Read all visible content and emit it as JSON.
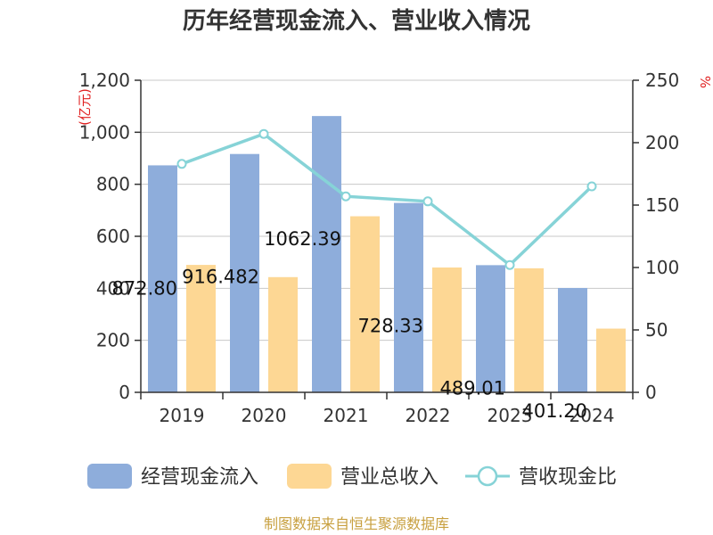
{
  "chart_data": {
    "type": "bar",
    "title": "历年经营现金流入、营业收入情况",
    "categories": [
      "2019",
      "2020",
      "2021",
      "2022",
      "2023",
      "2024"
    ],
    "series": [
      {
        "name": "经营现金流入",
        "type": "bar",
        "axis": "left",
        "color": "#8eaddb",
        "values": [
          872.8,
          916.48,
          1062.39,
          728.33,
          489.01,
          401.2
        ],
        "labels": [
          "872.80",
          "916.482",
          "1062.39",
          "728.33",
          "489.01",
          "401.20"
        ]
      },
      {
        "name": "营业总收入",
        "type": "bar",
        "axis": "left",
        "color": "#fdd794",
        "values": [
          490,
          443,
          677,
          480,
          477,
          245
        ]
      },
      {
        "name": "营收现金比",
        "type": "line",
        "axis": "right",
        "color": "#86d3d7",
        "values": [
          183,
          207,
          157,
          153,
          102,
          165
        ]
      }
    ],
    "ylabel_left": "(亿元)",
    "ylabel_right": "%",
    "ylim_left": [
      0,
      1200
    ],
    "ylim_right": [
      0,
      250
    ],
    "yticks_left": [
      "0",
      "200",
      "400",
      "600",
      "800",
      "1,000",
      "1,200"
    ],
    "yticks_right": [
      "0",
      "50",
      "100",
      "150",
      "200",
      "250"
    ],
    "legend_position": "bottom",
    "grid": true
  },
  "source": "制图数据来自恒生聚源数据库"
}
